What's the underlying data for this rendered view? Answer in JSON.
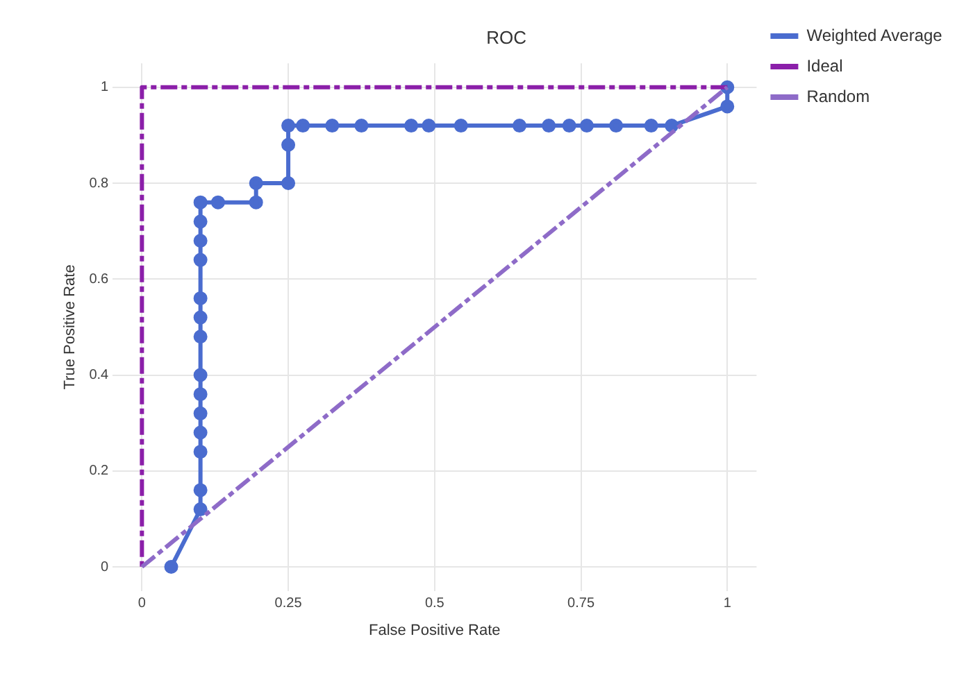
{
  "chart_data": {
    "type": "line",
    "title": "ROC",
    "xlabel": "False Positive Rate",
    "ylabel": "True Positive Rate",
    "xlim": [
      -0.05,
      1.05
    ],
    "ylim": [
      -0.05,
      1.05
    ],
    "xticks": [
      0,
      0.25,
      0.5,
      0.75,
      1
    ],
    "yticks": [
      0,
      0.2,
      0.4,
      0.6,
      0.8,
      1
    ],
    "grid": true,
    "legend": "top right",
    "series": [
      {
        "name": "Weighted Average",
        "color": "#4a6ccf",
        "marker": "circle",
        "line_style": "solid",
        "x": [
          0.05,
          0.1,
          0.1,
          0.1,
          0.1,
          0.1,
          0.1,
          0.1,
          0.1,
          0.1,
          0.1,
          0.1,
          0.1,
          0.1,
          0.1,
          0.13,
          0.195,
          0.195,
          0.25,
          0.25,
          0.25,
          0.275,
          0.325,
          0.375,
          0.46,
          0.49,
          0.545,
          0.645,
          0.695,
          0.73,
          0.76,
          0.81,
          0.87,
          0.905,
          1,
          1
        ],
        "values": [
          0,
          0.12,
          0.16,
          0.24,
          0.28,
          0.32,
          0.36,
          0.4,
          0.48,
          0.52,
          0.56,
          0.64,
          0.68,
          0.72,
          0.76,
          0.76,
          0.76,
          0.8,
          0.8,
          0.88,
          0.92,
          0.92,
          0.92,
          0.92,
          0.92,
          0.92,
          0.92,
          0.92,
          0.92,
          0.92,
          0.92,
          0.92,
          0.92,
          0.92,
          0.96,
          1
        ]
      },
      {
        "name": "Ideal",
        "color": "#8b1fa9",
        "marker": "none",
        "line_style": "dashed",
        "x": [
          1,
          0,
          0
        ],
        "values": [
          1,
          1,
          0
        ]
      },
      {
        "name": "Random",
        "color": "#8e6bc8",
        "marker": "none",
        "line_style": "dashed",
        "x": [
          0,
          1
        ],
        "values": [
          0,
          1
        ]
      }
    ]
  }
}
